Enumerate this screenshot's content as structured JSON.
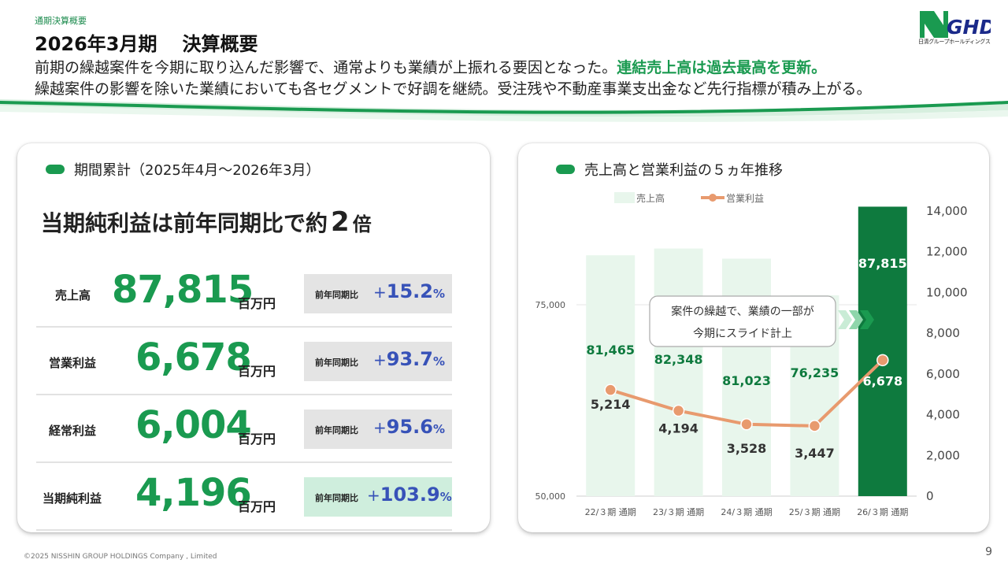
{
  "header": {
    "breadcrumb": "通期決算概要",
    "title_period": "2026年3月期",
    "title_main": "決算概要",
    "lead_line1": "前期の繰越案件を今期に取り込んだ影響で、通常よりも業績が上振れる要因となった。",
    "lead_line1_highlight": "連結売上高は過去最高を更新。",
    "lead_line2": "繰越案件の影響を除いた業績においても各セグメントで好調を継続。受注残や不動産事業支出金など先行指標が積み上がる。"
  },
  "logo": {
    "text": "NGHD",
    "sub": "日清グループホールディングス"
  },
  "colors": {
    "accent": "#1a9a50",
    "dark_green": "#0e7a3e",
    "bar_light": "#e8f6ec",
    "line": "#e89a6e",
    "yoy_blue": "#3752b8"
  },
  "summary": {
    "title": "期間累計（2025年4月〜2026年3月）",
    "headline_pre": "当期純利益は前年同期比で約",
    "headline_num": "2",
    "headline_post": "倍",
    "yoy_label": "前年同期比",
    "unit": "百万円",
    "rows": [
      {
        "label": "売上高",
        "value": "87,815",
        "yoy_sign": "+",
        "yoy": "15.2",
        "pct": "%"
      },
      {
        "label": "営業利益",
        "value": "6,678",
        "yoy_sign": "+",
        "yoy": "93.7",
        "pct": "%"
      },
      {
        "label": "経常利益",
        "value": "6,004",
        "yoy_sign": "+",
        "yoy": "95.6",
        "pct": "%"
      },
      {
        "label": "当期純利益",
        "value": "4,196",
        "yoy_sign": "+",
        "yoy": "103.9",
        "pct": "%"
      }
    ]
  },
  "chart_data": {
    "type": "bar",
    "title": "売上高と営業利益の５ヵ年推移",
    "categories": [
      "22/３期 通期",
      "23/３期 通期",
      "24/３期 通期",
      "25/３期 通期",
      "26/３期 通期"
    ],
    "series": [
      {
        "name": "売上高",
        "type": "bar",
        "axis": "left",
        "values": [
          81465,
          82348,
          81023,
          76235,
          87815
        ],
        "labels": [
          "81,465",
          "82,348",
          "81,023",
          "76,235",
          "87,815"
        ]
      },
      {
        "name": "営業利益",
        "type": "line",
        "axis": "right",
        "values": [
          5214,
          4194,
          3528,
          3447,
          6678
        ],
        "labels": [
          "5,214",
          "4,194",
          "3,528",
          "3,447",
          "6,678"
        ]
      }
    ],
    "left_axis": {
      "ylim": [
        50000,
        100000
      ],
      "ticks": [
        "50,000",
        "75,000"
      ]
    },
    "right_axis": {
      "ylim": [
        0,
        14000
      ],
      "ticks": [
        "0",
        "2,000",
        "4,000",
        "6,000",
        "8,000",
        "10,000",
        "12,000",
        "14,000"
      ]
    },
    "legend_position": "top",
    "annotation": {
      "line1": "案件の繰越で、業績の一部が",
      "line2": "今期にスライド計上"
    }
  },
  "footer": {
    "copyright": "©2025 NISSHIN GROUP HOLDINGS Company , Limited",
    "page": "9"
  }
}
